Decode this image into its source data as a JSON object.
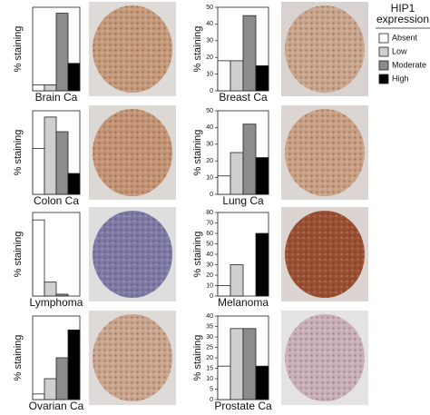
{
  "legend": {
    "title_lines": [
      "HIP1",
      "expression"
    ],
    "items": [
      {
        "name": "Absent",
        "color": "#ffffff"
      },
      {
        "name": "Low",
        "color": "#cfcfcf"
      },
      {
        "name": "Moderate",
        "color": "#8c8c8c"
      },
      {
        "name": "High",
        "color": "#000000"
      }
    ]
  },
  "chart_data": [
    {
      "type": "bar",
      "title": "Brain Ca",
      "ylabel": "% staining",
      "values": [
        5,
        5,
        65,
        23
      ],
      "ylim": [
        0,
        70
      ]
    },
    {
      "type": "bar",
      "title": "Breast Ca",
      "ylabel": "% staining",
      "values": [
        18,
        18,
        45,
        15
      ],
      "ylim": [
        0,
        50
      ],
      "yticks": [
        0,
        10,
        20,
        30,
        40,
        50
      ]
    },
    {
      "type": "bar",
      "title": "Colon Ca",
      "ylabel": "% staining",
      "values": [
        22,
        37,
        30,
        10
      ],
      "ylim": [
        0,
        40
      ]
    },
    {
      "type": "bar",
      "title": "Lung Ca",
      "ylabel": "% staining",
      "values": [
        11,
        25,
        42,
        22
      ],
      "ylim": [
        0,
        50
      ],
      "yticks": [
        0,
        10,
        20,
        30,
        40,
        50
      ]
    },
    {
      "type": "bar",
      "title": "Lymphoma",
      "ylabel": "% staining",
      "values": [
        82,
        15,
        2,
        0
      ],
      "ylim": [
        0,
        90
      ]
    },
    {
      "type": "bar",
      "title": "Melanoma",
      "ylabel": "% staining",
      "values": [
        10,
        30,
        0,
        60
      ],
      "ylim": [
        0,
        80
      ],
      "yticks": [
        0,
        10,
        20,
        30,
        40,
        50,
        60,
        70,
        80
      ]
    },
    {
      "type": "bar",
      "title": "Ovarian Ca",
      "ylabel": "% staining",
      "values": [
        4,
        15,
        30,
        50
      ],
      "ylim": [
        0,
        60
      ]
    },
    {
      "type": "bar",
      "title": "Prostate Ca",
      "ylabel": "% staining",
      "values": [
        16,
        34,
        34,
        16
      ],
      "ylim": [
        0,
        40
      ],
      "yticks": [
        0,
        5,
        10,
        15,
        20,
        25,
        30,
        35,
        40
      ]
    }
  ]
}
